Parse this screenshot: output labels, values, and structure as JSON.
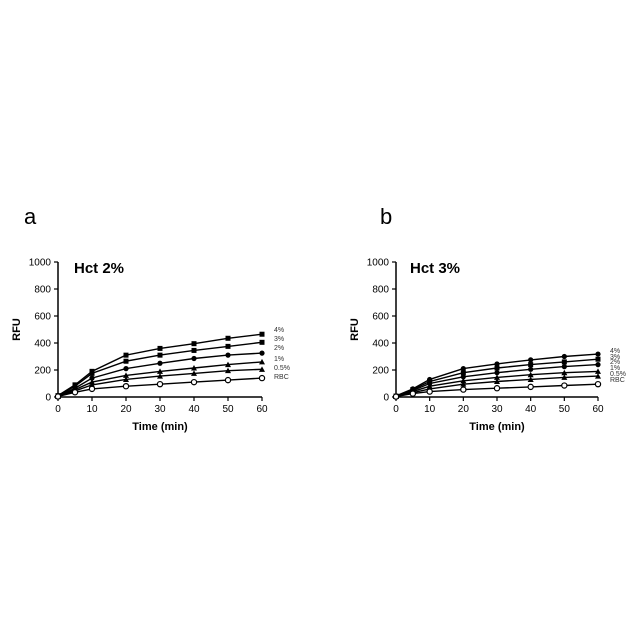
{
  "panels": [
    {
      "letter": "a"
    },
    {
      "letter": "b"
    }
  ],
  "chart_data": [
    {
      "type": "line",
      "title": "Hct 2%",
      "xlabel": "Time (min)",
      "ylabel": "RFU",
      "xlim": [
        0,
        60
      ],
      "ylim": [
        0,
        1000
      ],
      "xticks": [
        0,
        10,
        20,
        30,
        40,
        50,
        60
      ],
      "yticks": [
        0,
        200,
        400,
        600,
        800,
        1000
      ],
      "grid": false,
      "x": [
        0,
        5,
        10,
        20,
        30,
        40,
        50,
        60
      ],
      "series": [
        {
          "name": "4%",
          "marker": "square",
          "values": [
            10,
            90,
            190,
            310,
            360,
            395,
            435,
            465
          ]
        },
        {
          "name": "3%",
          "marker": "square",
          "values": [
            8,
            80,
            175,
            265,
            310,
            345,
            375,
            405
          ]
        },
        {
          "name": "2%",
          "marker": "circle",
          "values": [
            7,
            65,
            140,
            210,
            250,
            285,
            310,
            325
          ]
        },
        {
          "name": "1%",
          "marker": "triangle",
          "values": [
            6,
            55,
            110,
            160,
            190,
            215,
            240,
            260
          ]
        },
        {
          "name": "0.5%",
          "marker": "triangle",
          "values": [
            5,
            45,
            90,
            130,
            155,
            175,
            195,
            205
          ]
        },
        {
          "name": "RBC",
          "marker": "open-circle",
          "values": [
            4,
            35,
            60,
            80,
            95,
            110,
            125,
            140
          ]
        }
      ]
    },
    {
      "type": "line",
      "title": "Hct 3%",
      "xlabel": "Time (min)",
      "ylabel": "RFU",
      "xlim": [
        0,
        60
      ],
      "ylim": [
        0,
        1000
      ],
      "xticks": [
        0,
        10,
        20,
        30,
        40,
        50,
        60
      ],
      "yticks": [
        0,
        200,
        400,
        600,
        800,
        1000
      ],
      "grid": false,
      "x": [
        0,
        5,
        10,
        20,
        30,
        40,
        50,
        60
      ],
      "series": [
        {
          "name": "4%",
          "marker": "circle",
          "values": [
            8,
            60,
            130,
            210,
            245,
            275,
            300,
            318
          ]
        },
        {
          "name": "3%",
          "marker": "square",
          "values": [
            7,
            55,
            115,
            180,
            215,
            240,
            260,
            280
          ]
        },
        {
          "name": "2%",
          "marker": "circle",
          "values": [
            6,
            48,
            100,
            150,
            180,
            205,
            225,
            240
          ]
        },
        {
          "name": "1%",
          "marker": "triangle",
          "values": [
            5,
            40,
            80,
            120,
            145,
            165,
            180,
            190
          ]
        },
        {
          "name": "0.5%",
          "marker": "triangle",
          "values": [
            4,
            32,
            60,
            95,
            115,
            130,
            145,
            155
          ]
        },
        {
          "name": "RBC",
          "marker": "open-circle",
          "values": [
            3,
            25,
            40,
            55,
            65,
            75,
            85,
            95
          ]
        }
      ]
    }
  ]
}
